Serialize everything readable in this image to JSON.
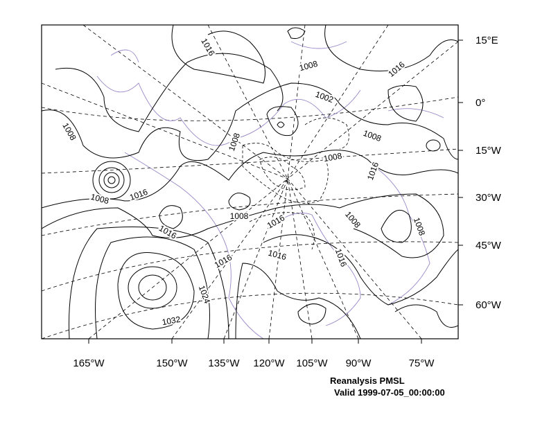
{
  "map": {
    "x_labels": [
      "165°W",
      "150°W",
      "135°W",
      "120°W",
      "105°W",
      "90°W",
      "75°W"
    ],
    "y_labels": [
      "15°E",
      "0°",
      "15°W",
      "30°W",
      "45°W",
      "60°W"
    ],
    "contour_labels": [
      "1016",
      "1008",
      "1016",
      "1002",
      "1008",
      "1008",
      "1008",
      "1008",
      "1016",
      "1008",
      "1016",
      "1008",
      "1016",
      "1008",
      "1008",
      "1016",
      "1016",
      "1016",
      "1016",
      "1024",
      "1032"
    ],
    "caption": [
      "Reanalysis PMSL",
      "Valid 1999-07-05_00:00:00"
    ]
  }
}
